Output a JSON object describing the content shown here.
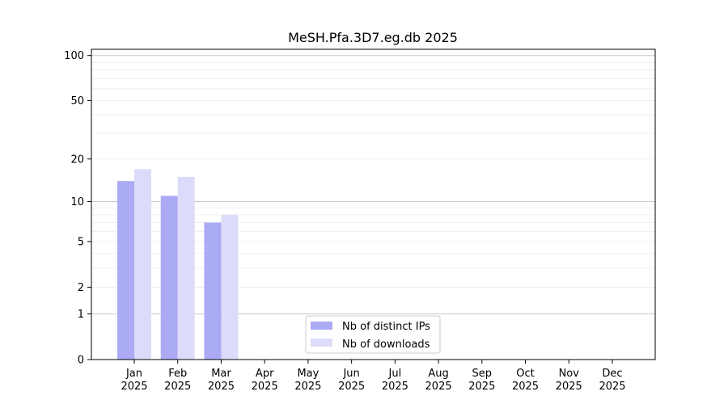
{
  "chart_data": {
    "type": "bar",
    "title": "MeSH.Pfa.3D7.eg.db 2025",
    "xlabel": "",
    "ylabel": "",
    "y_scale": "symlog",
    "yticks": [
      0,
      1,
      2,
      5,
      10,
      20,
      50,
      100
    ],
    "ylim": [
      0,
      110
    ],
    "grid": true,
    "legend_position": "bottom-center",
    "categories": [
      {
        "month": "Jan",
        "year": "2025"
      },
      {
        "month": "Feb",
        "year": "2025"
      },
      {
        "month": "Mar",
        "year": "2025"
      },
      {
        "month": "Apr",
        "year": "2025"
      },
      {
        "month": "May",
        "year": "2025"
      },
      {
        "month": "Jun",
        "year": "2025"
      },
      {
        "month": "Jul",
        "year": "2025"
      },
      {
        "month": "Aug",
        "year": "2025"
      },
      {
        "month": "Sep",
        "year": "2025"
      },
      {
        "month": "Oct",
        "year": "2025"
      },
      {
        "month": "Nov",
        "year": "2025"
      },
      {
        "month": "Dec",
        "year": "2025"
      }
    ],
    "series": [
      {
        "name": "Nb of distinct IPs",
        "color": "#aaaaf5",
        "values": [
          14,
          11,
          7,
          0,
          0,
          0,
          0,
          0,
          0,
          0,
          0,
          0
        ]
      },
      {
        "name": "Nb of downloads",
        "color": "#dcdcfa",
        "values": [
          17,
          15,
          8,
          0,
          0,
          0,
          0,
          0,
          0,
          0,
          0,
          0
        ]
      }
    ]
  }
}
